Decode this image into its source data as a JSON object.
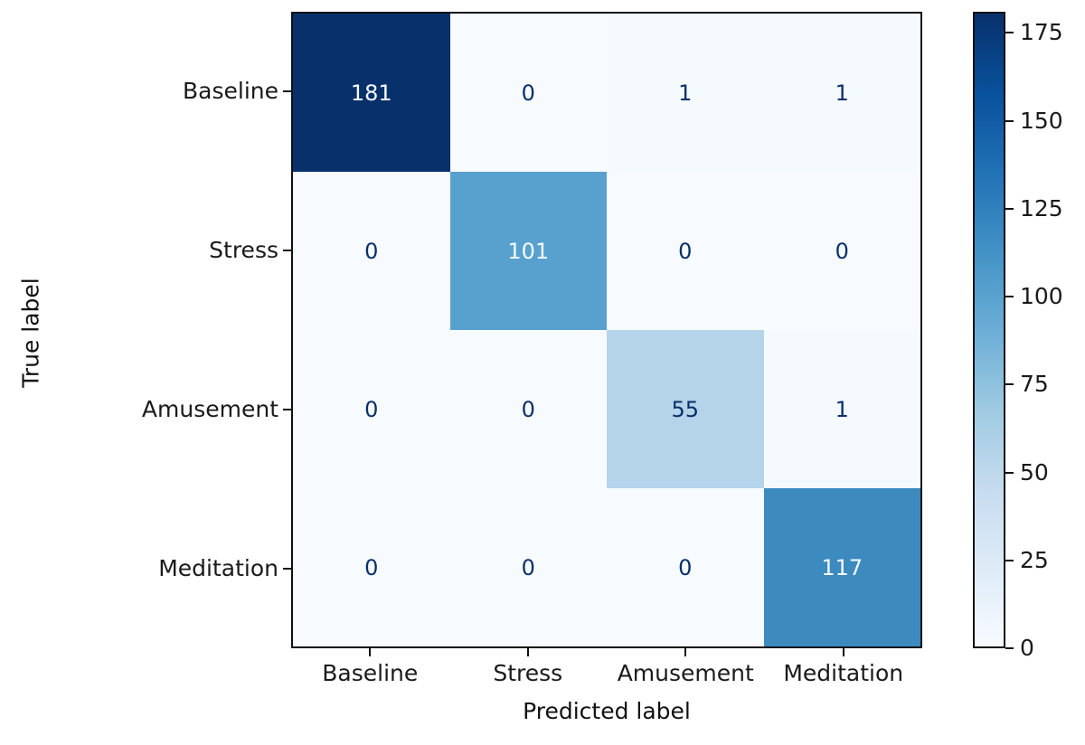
{
  "chart_data": {
    "type": "heatmap",
    "subtype": "confusion-matrix",
    "title": "",
    "xlabel": "Predicted label",
    "ylabel": "True label",
    "categories": [
      "Baseline",
      "Stress",
      "Amusement",
      "Meditation"
    ],
    "x_tick_labels": [
      "Baseline",
      "Stress",
      "Amusement",
      "Meditation"
    ],
    "y_tick_labels": [
      "Baseline",
      "Stress",
      "Amusement",
      "Meditation"
    ],
    "matrix": [
      [
        181,
        0,
        1,
        1
      ],
      [
        0,
        101,
        0,
        0
      ],
      [
        0,
        0,
        55,
        1
      ],
      [
        0,
        0,
        0,
        117
      ]
    ],
    "cell_bg": [
      [
        "#08306b",
        "#f7fbff",
        "#f5fafe",
        "#f5fafe"
      ],
      [
        "#f7fbff",
        "#58a1cf",
        "#f7fbff",
        "#f7fbff"
      ],
      [
        "#f7fbff",
        "#f7fbff",
        "#b5d4e9",
        "#f5fafe"
      ],
      [
        "#f7fbff",
        "#f7fbff",
        "#f7fbff",
        "#3c8abe"
      ]
    ],
    "cell_fg": [
      [
        "#f7fbff",
        "#08306b",
        "#08306b",
        "#08306b"
      ],
      [
        "#08306b",
        "#f7fbff",
        "#08306b",
        "#08306b"
      ],
      [
        "#08306b",
        "#08306b",
        "#08306b",
        "#08306b"
      ],
      [
        "#08306b",
        "#08306b",
        "#08306b",
        "#f7fbff"
      ]
    ],
    "colormap": "Blues",
    "vmin": 0,
    "vmax": 181,
    "colorbar_ticks": [
      0,
      25,
      50,
      75,
      100,
      125,
      150,
      175
    ],
    "grid": false,
    "legend_position": "colorbar-right"
  },
  "colors": {
    "cmap_low": "#f7fbff",
    "cmap_high": "#08306b",
    "axis": "#111111",
    "background": "#ffffff"
  }
}
